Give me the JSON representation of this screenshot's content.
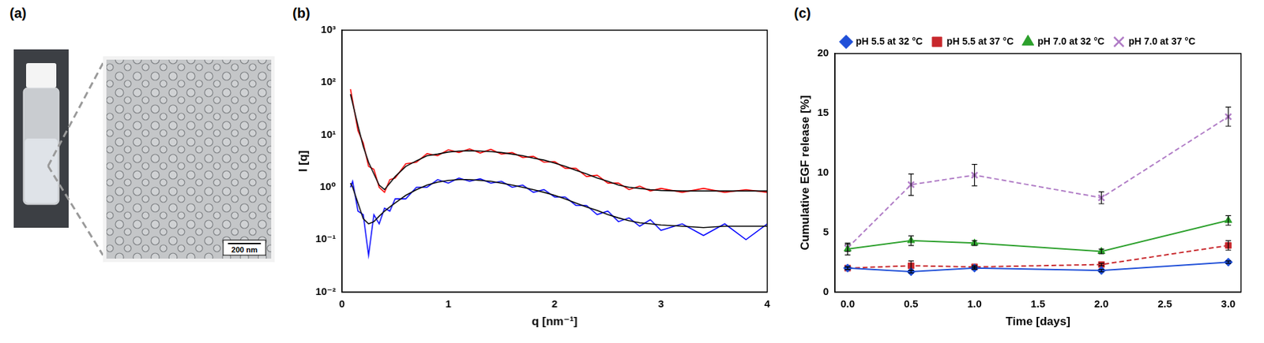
{
  "panel_a": {
    "label": "(a)",
    "scale_bar": "200 nm"
  },
  "chart_data": [
    {
      "type": "line",
      "title": "(b)",
      "x_label": "q [nm⁻¹]",
      "y_label": "I [q]",
      "log": "y",
      "grid": false,
      "legend": "none",
      "xlim": [
        0,
        4
      ],
      "xticks": [
        0,
        1,
        2,
        3,
        4
      ],
      "ylim": [
        0.01,
        1000
      ],
      "yticks": [
        {
          "value": 0.01,
          "label": "10⁻²"
        },
        {
          "value": 0.1,
          "label": "10⁻¹"
        },
        {
          "value": 1,
          "label": "10⁰"
        },
        {
          "value": 10,
          "label": "10¹"
        },
        {
          "value": 100,
          "label": "10²"
        },
        {
          "value": 1000,
          "label": "10³"
        }
      ],
      "x": [
        0.08,
        0.1,
        0.15,
        0.2,
        0.25,
        0.3,
        0.35,
        0.4,
        0.45,
        0.5,
        0.6,
        0.7,
        0.8,
        0.9,
        1.0,
        1.1,
        1.2,
        1.3,
        1.4,
        1.5,
        1.6,
        1.7,
        1.8,
        1.9,
        2.0,
        2.1,
        2.2,
        2.3,
        2.4,
        2.5,
        2.6,
        2.7,
        2.8,
        2.9,
        3.0,
        3.2,
        3.4,
        3.6,
        3.8,
        4.0
      ],
      "series": [
        {
          "color": "#000000",
          "marker": "none",
          "line_style": "solid",
          "values": [
            60,
            40,
            15,
            6,
            3,
            1.8,
            1.1,
            0.9,
            1.2,
            1.6,
            2.5,
            3.2,
            4.0,
            4.3,
            4.7,
            4.9,
            5.0,
            4.9,
            4.8,
            4.6,
            4.3,
            4.0,
            3.6,
            3.3,
            2.9,
            2.5,
            2.1,
            1.8,
            1.5,
            1.3,
            1.1,
            1.0,
            0.95,
            0.9,
            0.87,
            0.85,
            0.85,
            0.85,
            0.85,
            0.85
          ]
        },
        {
          "color": "#000000",
          "marker": "none",
          "line_style": "solid",
          "values": [
            1.2,
            1.0,
            0.5,
            0.25,
            0.2,
            0.22,
            0.28,
            0.35,
            0.42,
            0.5,
            0.7,
            0.9,
            1.1,
            1.25,
            1.35,
            1.4,
            1.4,
            1.35,
            1.3,
            1.2,
            1.1,
            1.0,
            0.9,
            0.8,
            0.7,
            0.6,
            0.5,
            0.42,
            0.36,
            0.3,
            0.26,
            0.23,
            0.21,
            0.2,
            0.19,
            0.18,
            0.17,
            0.18,
            0.18,
            0.18
          ]
        },
        {
          "color": "#ff0000",
          "marker": "none",
          "line_style": "solid",
          "values": [
            75,
            45,
            12,
            7,
            2.5,
            2.2,
            1.0,
            0.8,
            1.4,
            1.5,
            2.8,
            3.0,
            4.4,
            4.0,
            5.2,
            4.6,
            5.4,
            4.5,
            5.3,
            4.3,
            4.6,
            3.7,
            3.9,
            3.0,
            3.1,
            2.3,
            2.3,
            1.6,
            1.7,
            1.2,
            1.2,
            0.9,
            1.05,
            0.85,
            0.95,
            0.8,
            0.95,
            0.8,
            0.9,
            0.8
          ]
        },
        {
          "color": "#0000ff",
          "marker": "none",
          "line_style": "solid",
          "values": [
            1.0,
            1.3,
            0.35,
            0.3,
            0.05,
            0.3,
            0.2,
            0.4,
            0.35,
            0.6,
            0.6,
            1.0,
            1.0,
            1.4,
            1.2,
            1.5,
            1.3,
            1.45,
            1.2,
            1.3,
            1.0,
            1.1,
            0.8,
            0.9,
            0.65,
            0.65,
            0.45,
            0.45,
            0.3,
            0.35,
            0.22,
            0.26,
            0.18,
            0.24,
            0.15,
            0.2,
            0.12,
            0.2,
            0.1,
            0.2
          ]
        }
      ]
    },
    {
      "type": "line",
      "title": "(c)",
      "x_label": "Time [days]",
      "y_label": "Cumulative EGF release [%]",
      "grid": false,
      "legend": "top",
      "xlim": [
        -0.1,
        3.1
      ],
      "xticks": [
        {
          "value": 0,
          "label": "0.0"
        },
        {
          "value": 0.5,
          "label": "0.5"
        },
        {
          "value": 1,
          "label": "1.0"
        },
        {
          "value": 1.5,
          "label": "1.5"
        },
        {
          "value": 2,
          "label": "2.0"
        },
        {
          "value": 2.5,
          "label": "2.5"
        },
        {
          "value": 3,
          "label": "3.0"
        }
      ],
      "ylim": [
        0,
        20
      ],
      "yticks": [
        0,
        5,
        10,
        15,
        20
      ],
      "x": [
        0,
        0.5,
        1,
        2,
        3
      ],
      "series": [
        {
          "name": "pH 5.5 at 32 °C",
          "color": "#1f4fd8",
          "marker": "diamond",
          "line_style": "solid",
          "values": [
            2.0,
            1.7,
            2.0,
            1.8,
            2.5
          ],
          "errors": [
            0.1,
            0.1,
            0.1,
            0.1,
            0.1
          ]
        },
        {
          "name": "pH 5.5 at 37 °C",
          "color": "#c8282d",
          "marker": "square",
          "line_style": "dashed",
          "values": [
            2.0,
            2.2,
            2.1,
            2.3,
            3.9
          ],
          "errors": [
            0.1,
            0.4,
            0.1,
            0.1,
            0.4
          ]
        },
        {
          "name": "pH 7.0 at 32 °C",
          "color": "#2ca02c",
          "marker": "triangle",
          "line_style": "solid",
          "values": [
            3.6,
            4.3,
            4.1,
            3.4,
            6.0
          ],
          "errors": [
            0.5,
            0.4,
            0.2,
            0.2,
            0.4
          ]
        },
        {
          "name": "pH 7.0 at 37 °C",
          "color": "#b07cc6",
          "marker": "cross",
          "line_style": "dashed",
          "values": [
            3.7,
            9.0,
            9.8,
            7.9,
            14.7
          ],
          "errors": [
            0.3,
            0.9,
            0.9,
            0.5,
            0.8
          ]
        }
      ]
    }
  ]
}
